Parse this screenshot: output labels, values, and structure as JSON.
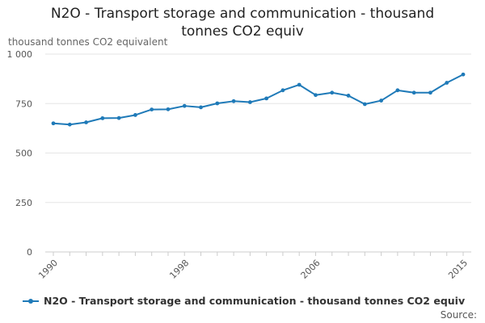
{
  "chart_data": {
    "type": "line",
    "title_line1": "N2O - Transport storage and communication - thousand",
    "title_line2": "tonnes CO2 equiv",
    "ylabel": "thousand tonnes CO2 equivalent",
    "xlabel": "",
    "x": [
      1990,
      1991,
      1992,
      1993,
      1994,
      1995,
      1996,
      1997,
      1998,
      1999,
      2000,
      2001,
      2002,
      2003,
      2004,
      2005,
      2006,
      2007,
      2008,
      2009,
      2010,
      2011,
      2012,
      2013,
      2014,
      2015
    ],
    "x_tick_labels": [
      "1990",
      "1998",
      "2006",
      "2015"
    ],
    "y_ticks": [
      0,
      250,
      500,
      750,
      1000
    ],
    "y_tick_labels": [
      "0",
      "250",
      "500",
      "750",
      "1 000"
    ],
    "ylim": [
      0,
      1000
    ],
    "grid": true,
    "legend_position": "bottom",
    "series": [
      {
        "name": "N2O - Transport storage and communication - thousand tonnes CO2 equiv",
        "color": "#1f7ab8",
        "values": [
          650,
          644,
          655,
          676,
          677,
          692,
          720,
          721,
          738,
          731,
          751,
          762,
          757,
          776,
          817,
          845,
          793,
          805,
          790,
          747,
          765,
          817,
          805,
          805,
          855,
          897
        ]
      }
    ],
    "source_label": "Source:"
  }
}
